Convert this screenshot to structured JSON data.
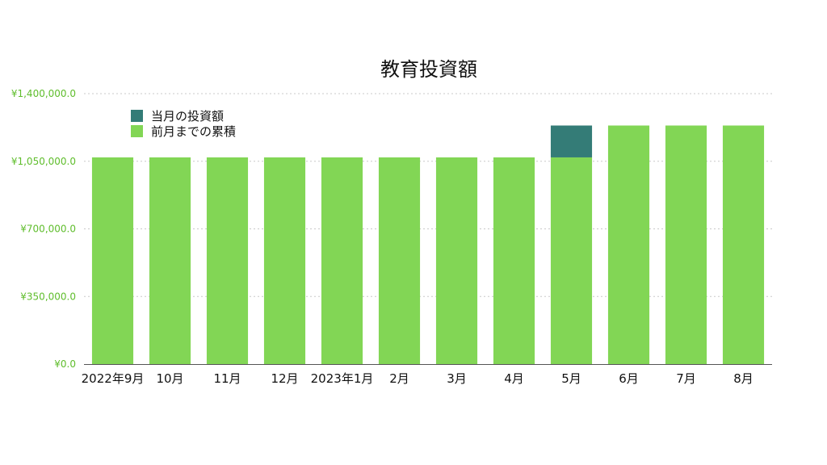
{
  "chart_data": {
    "type": "bar",
    "stacked": true,
    "title": "教育投資額",
    "categories": [
      "2022年9月",
      "10月",
      "11月",
      "12月",
      "2023年1月",
      "2月",
      "3月",
      "4月",
      "5月",
      "6月",
      "7月",
      "8月"
    ],
    "series": [
      {
        "name": "前月までの累積",
        "color": "#82d655",
        "values": [
          1070000,
          1070000,
          1070000,
          1070000,
          1070000,
          1070000,
          1070000,
          1070000,
          1070000,
          1235000,
          1235000,
          1235000
        ]
      },
      {
        "name": "当月の投資額",
        "color": "#347c77",
        "values": [
          0,
          0,
          0,
          0,
          0,
          0,
          0,
          0,
          165000,
          0,
          0,
          0
        ]
      }
    ],
    "ylim": [
      0,
      1400000
    ],
    "y_ticks": [
      0,
      350000,
      700000,
      1050000,
      1400000
    ],
    "y_tick_labels": [
      "¥0.0",
      "¥350,000.0",
      "¥700,000.0",
      "¥1,050,000.0",
      "¥1,400,000.0"
    ],
    "y_tick_color": "#5fbd2c",
    "grid": true,
    "legend_position": "top-left"
  }
}
